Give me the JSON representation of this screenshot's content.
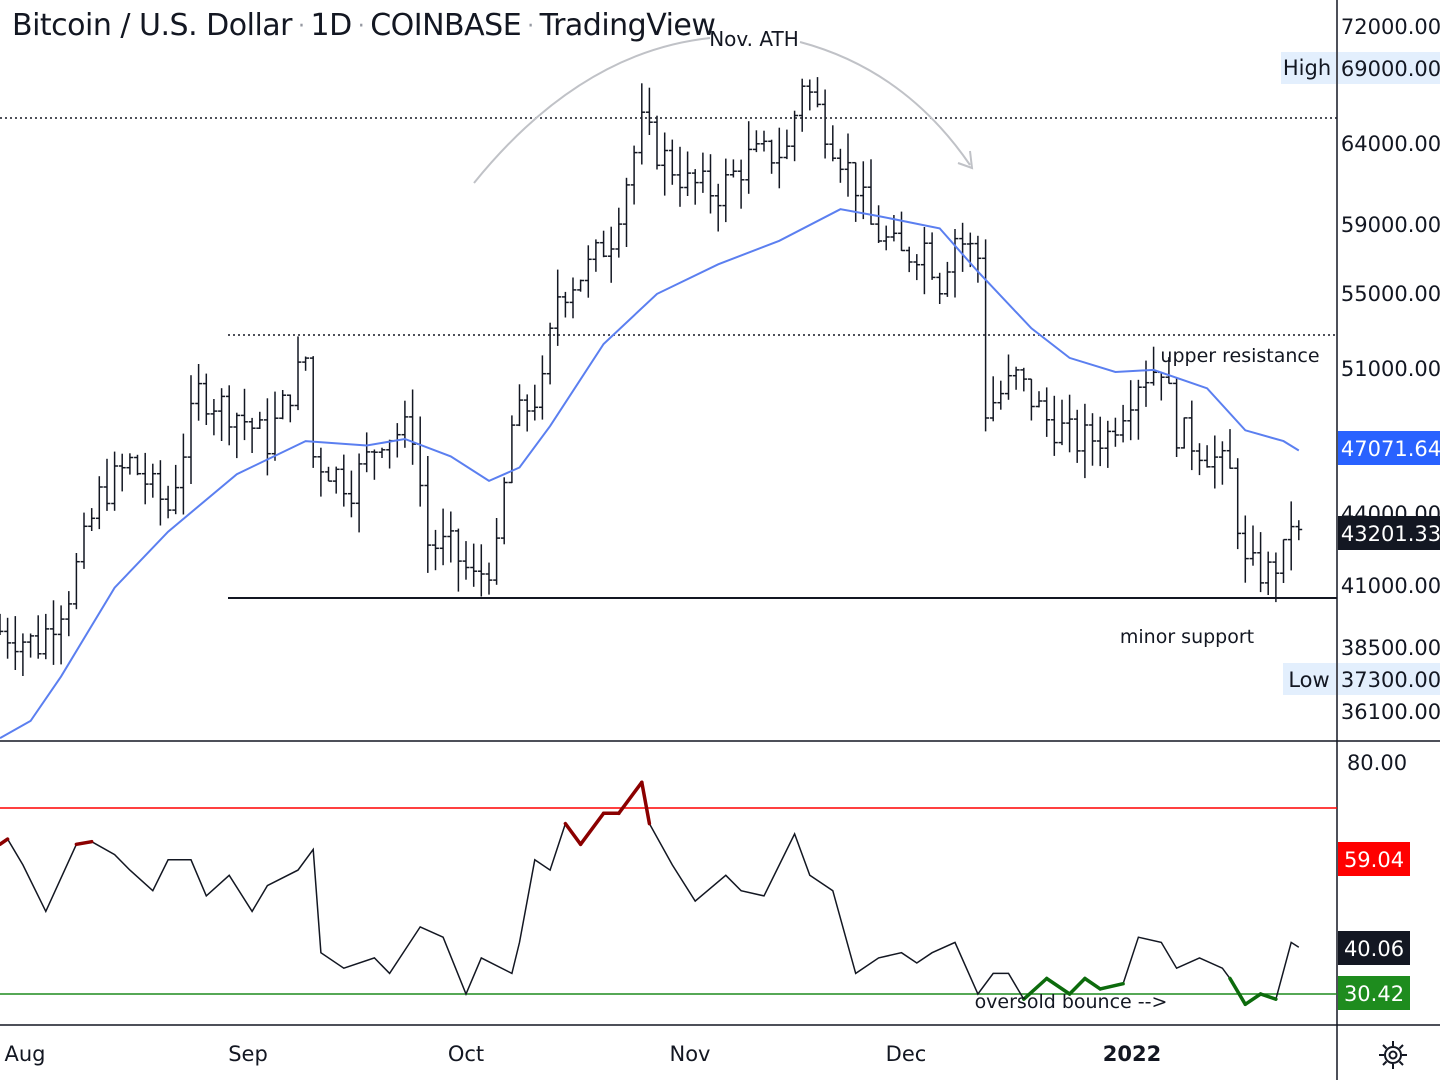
{
  "header": {
    "symbol": "Bitcoin / U.S. Dollar",
    "interval": "1D",
    "exchange": "COINBASE",
    "brand": "TradingView"
  },
  "annotations": {
    "ath": "Nov. ATH",
    "upper_resistance": "upper resistance",
    "minor_support": "minor support",
    "oversold_bounce": "oversold bounce -->"
  },
  "price_axis": {
    "ticks": [
      "72000.00",
      "64000.00",
      "59000.00",
      "55000.00",
      "51000.00",
      "41000.00",
      "38500.00",
      "36100.00"
    ],
    "partial_tick": "44000.00",
    "high_label": "High",
    "high_value": "69000.00",
    "low_label": "Low",
    "low_value": "37300.00",
    "ma_value": "47071.64",
    "last_price": "43201.33"
  },
  "rsi_axis": {
    "tick": "80.00",
    "upper_level": "59.04",
    "current": "40.06",
    "lower_level": "30.42"
  },
  "time_axis": [
    "Aug",
    "Sep",
    "Oct",
    "Nov",
    "Dec",
    "2022"
  ],
  "colors": {
    "ma_line": "#5b7ff0",
    "ma_tag": "#2962ff",
    "rsi_upper": "#ff0000",
    "rsi_lower": "#1e8c1e",
    "overbought_segment": "#8b0000",
    "oversold_segment": "#0d6b0d",
    "last_price_tag": "#131722",
    "high_low_tag_bg": "#e3effd"
  },
  "chart_data": [
    {
      "type": "ohlc",
      "title": "Bitcoin / U.S. Dollar · 1D · COINBASE",
      "x_range": [
        "2021-07-28",
        "2022-01-19"
      ],
      "y_scale": "log",
      "y_range": [
        35500,
        72900
      ],
      "levels": {
        "all_time_high": 69000,
        "upper_resistance": 53000,
        "minor_support": 40500
      },
      "series": [
        {
          "name": "",
          "type": "moving_average",
          "points": [
            [
              "2021-07-28",
              35600
            ],
            [
              "2021-08-01",
              36200
            ],
            [
              "2021-08-05",
              37800
            ],
            [
              "2021-08-12",
              41200
            ],
            [
              "2021-08-19",
              43500
            ],
            [
              "2021-08-28",
              46000
            ],
            [
              "2021-09-06",
              47500
            ],
            [
              "2021-09-14",
              47300
            ],
            [
              "2021-09-19",
              47600
            ],
            [
              "2021-09-25",
              46800
            ],
            [
              "2021-09-30",
              45700
            ],
            [
              "2021-10-04",
              46300
            ],
            [
              "2021-10-08",
              48200
            ],
            [
              "2021-10-15",
              52200
            ],
            [
              "2021-10-22",
              54800
            ],
            [
              "2021-10-30",
              56400
            ],
            [
              "2021-11-07",
              57700
            ],
            [
              "2021-11-15",
              59500
            ],
            [
              "2021-11-20",
              59100
            ],
            [
              "2021-11-28",
              58400
            ],
            [
              "2021-12-03",
              56000
            ],
            [
              "2021-12-10",
              53000
            ],
            [
              "2021-12-15",
              51500
            ],
            [
              "2021-12-21",
              50800
            ],
            [
              "2021-12-26",
              50900
            ],
            [
              "2022-01-02",
              50000
            ],
            [
              "2022-01-07",
              48000
            ],
            [
              "2022-01-12",
              47500
            ],
            [
              "2022-01-14",
              47071.64
            ]
          ]
        },
        {
          "name": "",
          "type": "close",
          "points": [
            [
              "2021-07-28",
              39500
            ],
            [
              "2021-08-02",
              39000
            ],
            [
              "2021-08-06",
              41000
            ],
            [
              "2021-08-10",
              45000
            ],
            [
              "2021-08-14",
              46500
            ],
            [
              "2021-08-19",
              44500
            ],
            [
              "2021-08-23",
              49800
            ],
            [
              "2021-08-28",
              48800
            ],
            [
              "2021-09-01",
              47500
            ],
            [
              "2021-09-06",
              51500
            ],
            [
              "2021-09-07",
              46800
            ],
            [
              "2021-09-12",
              45500
            ],
            [
              "2021-09-16",
              47800
            ],
            [
              "2021-09-20",
              48000
            ],
            [
              "2021-09-22",
              43000
            ],
            [
              "2021-09-25",
              42800
            ],
            [
              "2021-09-28",
              41500
            ],
            [
              "2021-10-01",
              42500
            ],
            [
              "2021-10-03",
              48200
            ],
            [
              "2021-10-07",
              50000
            ],
            [
              "2021-10-09",
              54800
            ],
            [
              "2021-10-13",
              56200
            ],
            [
              "2021-10-16",
              58000
            ],
            [
              "2021-10-20",
              64500
            ],
            [
              "2021-10-22",
              63000
            ],
            [
              "2021-10-26",
              61000
            ],
            [
              "2021-10-30",
              60500
            ],
            [
              "2021-11-03",
              62500
            ],
            [
              "2021-11-08",
              63000
            ],
            [
              "2021-11-10",
              67500
            ],
            [
              "2021-11-13",
              64500
            ],
            [
              "2021-11-17",
              61000
            ],
            [
              "2021-11-19",
              58500
            ],
            [
              "2021-11-23",
              56800
            ],
            [
              "2021-11-26",
              57500
            ],
            [
              "2021-11-28",
              55500
            ],
            [
              "2021-11-30",
              58000
            ],
            [
              "2021-12-03",
              56800
            ],
            [
              "2021-12-04",
              49000
            ],
            [
              "2021-12-08",
              50500
            ],
            [
              "2021-12-12",
              48500
            ],
            [
              "2021-12-16",
              47500
            ],
            [
              "2021-12-20",
              47800
            ],
            [
              "2021-12-24",
              50500
            ],
            [
              "2021-12-27",
              51200
            ],
            [
              "2021-12-29",
              48000
            ],
            [
              "2022-01-02",
              47000
            ],
            [
              "2022-01-05",
              46000
            ],
            [
              "2022-01-07",
              42000
            ],
            [
              "2022-01-10",
              41800
            ],
            [
              "2022-01-12",
              42500
            ],
            [
              "2022-01-13",
              44000
            ],
            [
              "2022-01-14",
              43201.33
            ]
          ]
        }
      ]
    },
    {
      "type": "line",
      "title": "",
      "x_range": [
        "2021-07-28",
        "2022-01-19"
      ],
      "y_range": [
        25,
        80
      ],
      "levels": {
        "upper": 59.04,
        "lower": 30.42
      },
      "series": [
        {
          "name": "",
          "values_dated": [
            [
              "2021-07-28",
              60
            ],
            [
              "2021-07-29",
              61
            ],
            [
              "2021-07-31",
              56
            ],
            [
              "2021-08-03",
              47
            ],
            [
              "2021-08-07",
              60
            ],
            [
              "2021-08-09",
              60.5
            ],
            [
              "2021-08-12",
              58
            ],
            [
              "2021-08-14",
              55
            ],
            [
              "2021-08-17",
              51
            ],
            [
              "2021-08-19",
              57
            ],
            [
              "2021-08-22",
              57
            ],
            [
              "2021-08-24",
              50
            ],
            [
              "2021-08-27",
              54
            ],
            [
              "2021-08-30",
              47
            ],
            [
              "2021-09-01",
              52
            ],
            [
              "2021-09-05",
              55
            ],
            [
              "2021-09-07",
              59
            ],
            [
              "2021-09-08",
              39
            ],
            [
              "2021-09-11",
              36
            ],
            [
              "2021-09-15",
              38
            ],
            [
              "2021-09-17",
              35
            ],
            [
              "2021-09-21",
              44
            ],
            [
              "2021-09-24",
              42
            ],
            [
              "2021-09-27",
              31
            ],
            [
              "2021-09-29",
              38
            ],
            [
              "2021-10-03",
              35
            ],
            [
              "2021-10-04",
              41
            ],
            [
              "2021-10-06",
              57
            ],
            [
              "2021-10-08",
              55
            ],
            [
              "2021-10-10",
              64
            ],
            [
              "2021-10-12",
              60
            ],
            [
              "2021-10-15",
              66
            ],
            [
              "2021-10-17",
              66
            ],
            [
              "2021-10-20",
              72
            ],
            [
              "2021-10-21",
              64
            ],
            [
              "2021-10-24",
              56
            ],
            [
              "2021-10-27",
              49
            ],
            [
              "2021-10-31",
              54
            ],
            [
              "2021-11-02",
              51
            ],
            [
              "2021-11-05",
              50
            ],
            [
              "2021-11-09",
              62
            ],
            [
              "2021-11-11",
              54
            ],
            [
              "2021-11-14",
              51
            ],
            [
              "2021-11-17",
              35
            ],
            [
              "2021-11-20",
              38
            ],
            [
              "2021-11-23",
              39
            ],
            [
              "2021-11-25",
              37
            ],
            [
              "2021-11-27",
              39
            ],
            [
              "2021-11-30",
              41
            ],
            [
              "2021-12-03",
              31
            ],
            [
              "2021-12-05",
              35
            ],
            [
              "2021-12-07",
              35
            ],
            [
              "2021-12-09",
              30
            ],
            [
              "2021-12-12",
              34
            ],
            [
              "2021-12-15",
              31
            ],
            [
              "2021-12-17",
              34
            ],
            [
              "2021-12-19",
              32
            ],
            [
              "2021-12-22",
              33
            ],
            [
              "2021-12-24",
              42
            ],
            [
              "2021-12-27",
              41
            ],
            [
              "2021-12-29",
              36
            ],
            [
              "2022-01-01",
              38
            ],
            [
              "2022-01-04",
              36
            ],
            [
              "2022-01-05",
              34
            ],
            [
              "2022-01-07",
              29
            ],
            [
              "2022-01-09",
              31
            ],
            [
              "2022-01-11",
              30
            ],
            [
              "2022-01-13",
              41
            ],
            [
              "2022-01-14",
              40.06
            ]
          ]
        }
      ]
    }
  ]
}
